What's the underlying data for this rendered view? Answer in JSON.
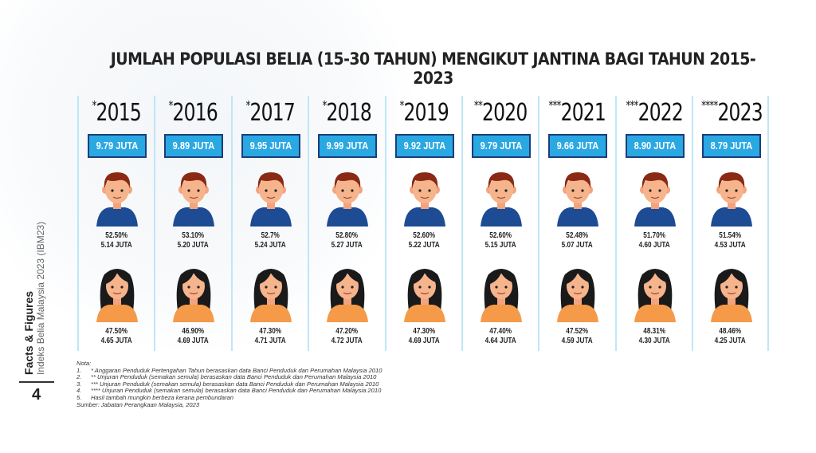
{
  "chart_data": {
    "type": "table",
    "title": "JUMLAH POPULASI BELIA (15-30 TAHUN) MENGIKUT JANTINA BAGI TAHUN 2015-2023",
    "columns": [
      {
        "year": "2015",
        "mark": "*",
        "total": "9.79 JUTA",
        "male_pct": "52.50%",
        "male": "5.14 JUTA",
        "female_pct": "47.50%",
        "female": "4.65 JUTA"
      },
      {
        "year": "2016",
        "mark": "*",
        "total": "9.89 JUTA",
        "male_pct": "53.10%",
        "male": "5.20 JUTA",
        "female_pct": "46.90%",
        "female": "4.69 JUTA"
      },
      {
        "year": "2017",
        "mark": "*",
        "total": "9.95 JUTA",
        "male_pct": "52.7%",
        "male": "5.24 JUTA",
        "female_pct": "47.30%",
        "female": "4.71 JUTA"
      },
      {
        "year": "2018",
        "mark": "*",
        "total": "9.99 JUTA",
        "male_pct": "52.80%",
        "male": "5.27 JUTA",
        "female_pct": "47.20%",
        "female": "4.72 JUTA"
      },
      {
        "year": "2019",
        "mark": "*",
        "total": "9.92 JUTA",
        "male_pct": "52.60%",
        "male": "5.22 JUTA",
        "female_pct": "47.30%",
        "female": "4.69 JUTA"
      },
      {
        "year": "2020",
        "mark": "**",
        "total": "9.79 JUTA",
        "male_pct": "52.60%",
        "male": "5.15 JUTA",
        "female_pct": "47.40%",
        "female": "4.64 JUTA"
      },
      {
        "year": "2021",
        "mark": "***",
        "total": "9.66 JUTA",
        "male_pct": "52.48%",
        "male": "5.07 JUTA",
        "female_pct": "47.52%",
        "female": "4.59 JUTA"
      },
      {
        "year": "2022",
        "mark": "***",
        "total": "8.90 JUTA",
        "male_pct": "51.70%",
        "male": "4.60 JUTA",
        "female_pct": "48.31%",
        "female": "4.30 JUTA"
      },
      {
        "year": "2023",
        "mark": "****",
        "total": "8.79 JUTA",
        "male_pct": "51.54%",
        "male": "4.53 JUTA",
        "female_pct": "48.46%",
        "female": "4.25 JUTA"
      }
    ]
  },
  "colors": {
    "box": "#29a8e2",
    "boy_shirt": "#1d4b94",
    "girl_shirt": "#f59a48",
    "divider": "#bfe6f6"
  },
  "side": {
    "label": "Facts & Figures",
    "sub": "Indeks Belia Malaysia 2023 (IBM23)",
    "page": "4"
  },
  "notes": {
    "heading": "Nota:",
    "items": [
      {
        "n": "1.",
        "t": "* Anggaran Penduduk Pertengahan Tahun berasaskan data Banci Penduduk dan Perumahan Malaysia 2010"
      },
      {
        "n": "2.",
        "t": "** Unjuran Penduduk (semakan semula) berasaskan data Banci Penduduk dan Perumahan Malaysia 2010"
      },
      {
        "n": "3.",
        "t": "*** Unjuran Penduduk (semakan semula) berasaskan data Banci Penduduk dan Perumahan Malaysia 2010"
      },
      {
        "n": "4.",
        "t": "**** Unjuran Penduduk (semakan semula) berasaskan data Banci Penduduk dan Perumahan Malaysia 2010"
      },
      {
        "n": "5.",
        "t": "Hasil tambah mungkin berbeza kerana pembundaran"
      }
    ],
    "source": "Sumber: Jabatan Perangkaan Malaysia, 2023"
  }
}
